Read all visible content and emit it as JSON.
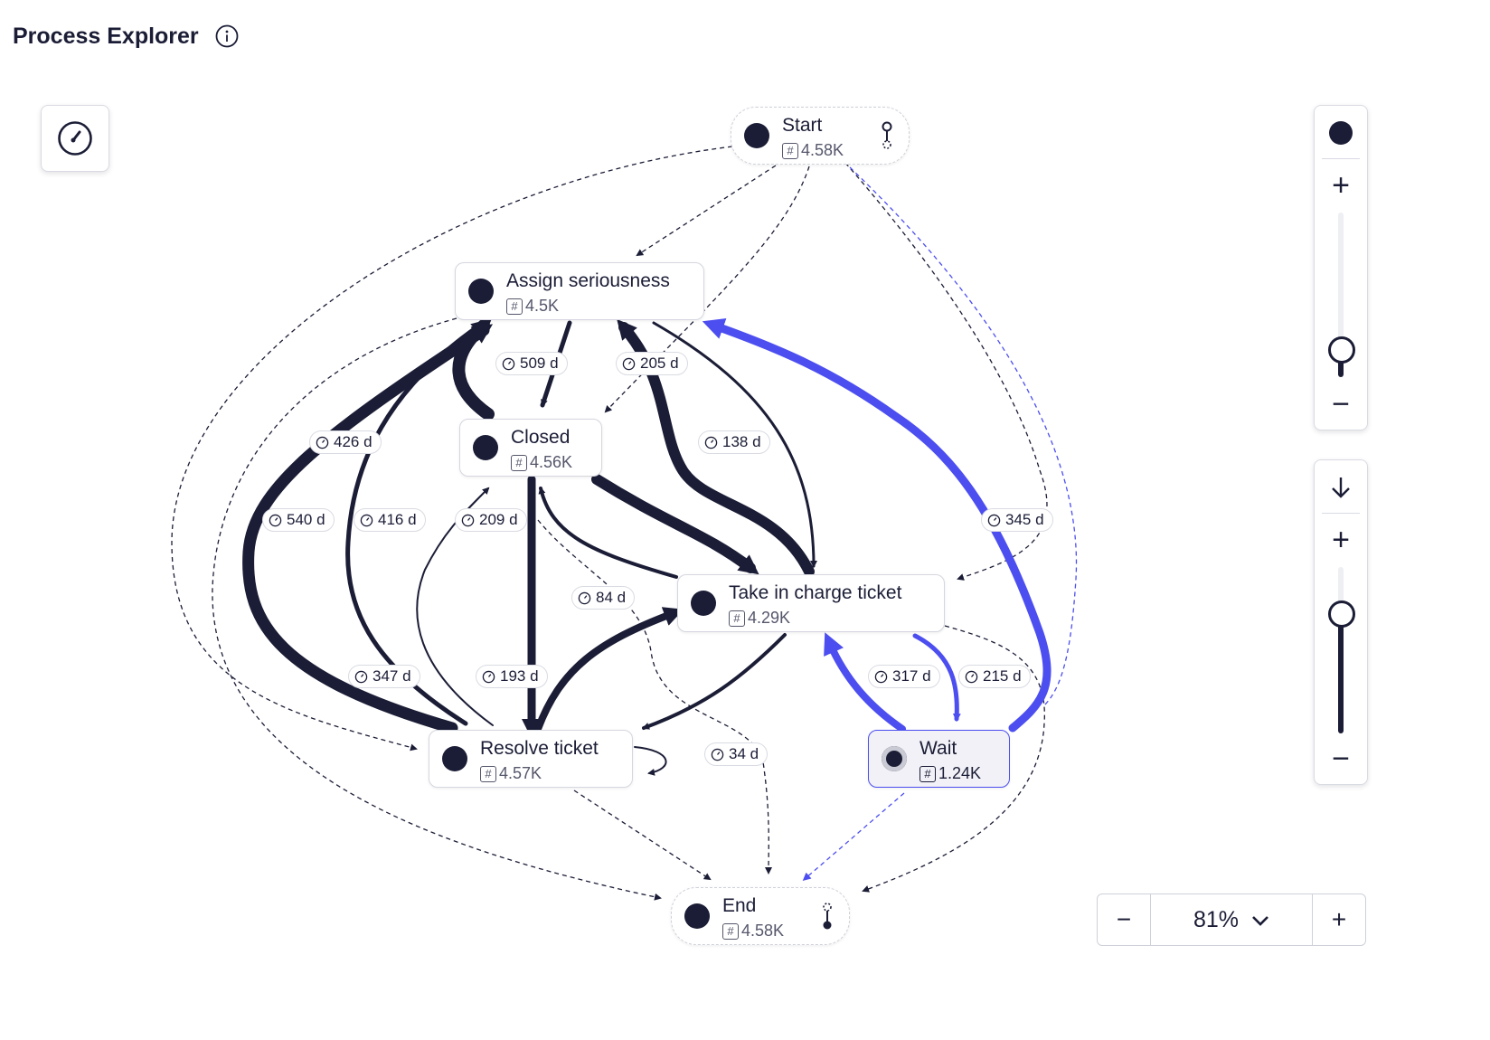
{
  "header": {
    "title": "Process Explorer",
    "info_icon": "info-icon"
  },
  "colors": {
    "dark": "#1b1d36",
    "accent": "#4c4ef0",
    "muted": "#55576b",
    "border": "#d5d7df"
  },
  "toolbar": {
    "gauge_icon": "gauge-icon"
  },
  "nodes": {
    "start": {
      "name": "Start",
      "count": "4.58K"
    },
    "assign": {
      "name": "Assign seriousness",
      "count": "4.5K"
    },
    "closed": {
      "name": "Closed",
      "count": "4.56K"
    },
    "take": {
      "name": "Take in charge ticket",
      "count": "4.29K"
    },
    "resolve": {
      "name": "Resolve ticket",
      "count": "4.57K"
    },
    "wait": {
      "name": "Wait",
      "count": "1.24K"
    },
    "end": {
      "name": "End",
      "count": "4.58K"
    }
  },
  "edge_labels": {
    "l509": "509 d",
    "l205": "205 d",
    "l426": "426 d",
    "l138": "138 d",
    "l540": "540 d",
    "l416": "416 d",
    "l209": "209 d",
    "l345": "345 d",
    "l84": "84 d",
    "l347": "347 d",
    "l193": "193 d",
    "l317": "317 d",
    "l215": "215 d",
    "l34": "34 d"
  },
  "activity_slider": {
    "icon": "activity-dot-icon",
    "plus": "+",
    "minus": "−",
    "level": 0.15
  },
  "path_slider": {
    "icon": "arrow-down-icon",
    "plus": "+",
    "minus": "−",
    "level": 0.7
  },
  "zoom": {
    "minus": "−",
    "value": "81%",
    "plus": "+"
  }
}
